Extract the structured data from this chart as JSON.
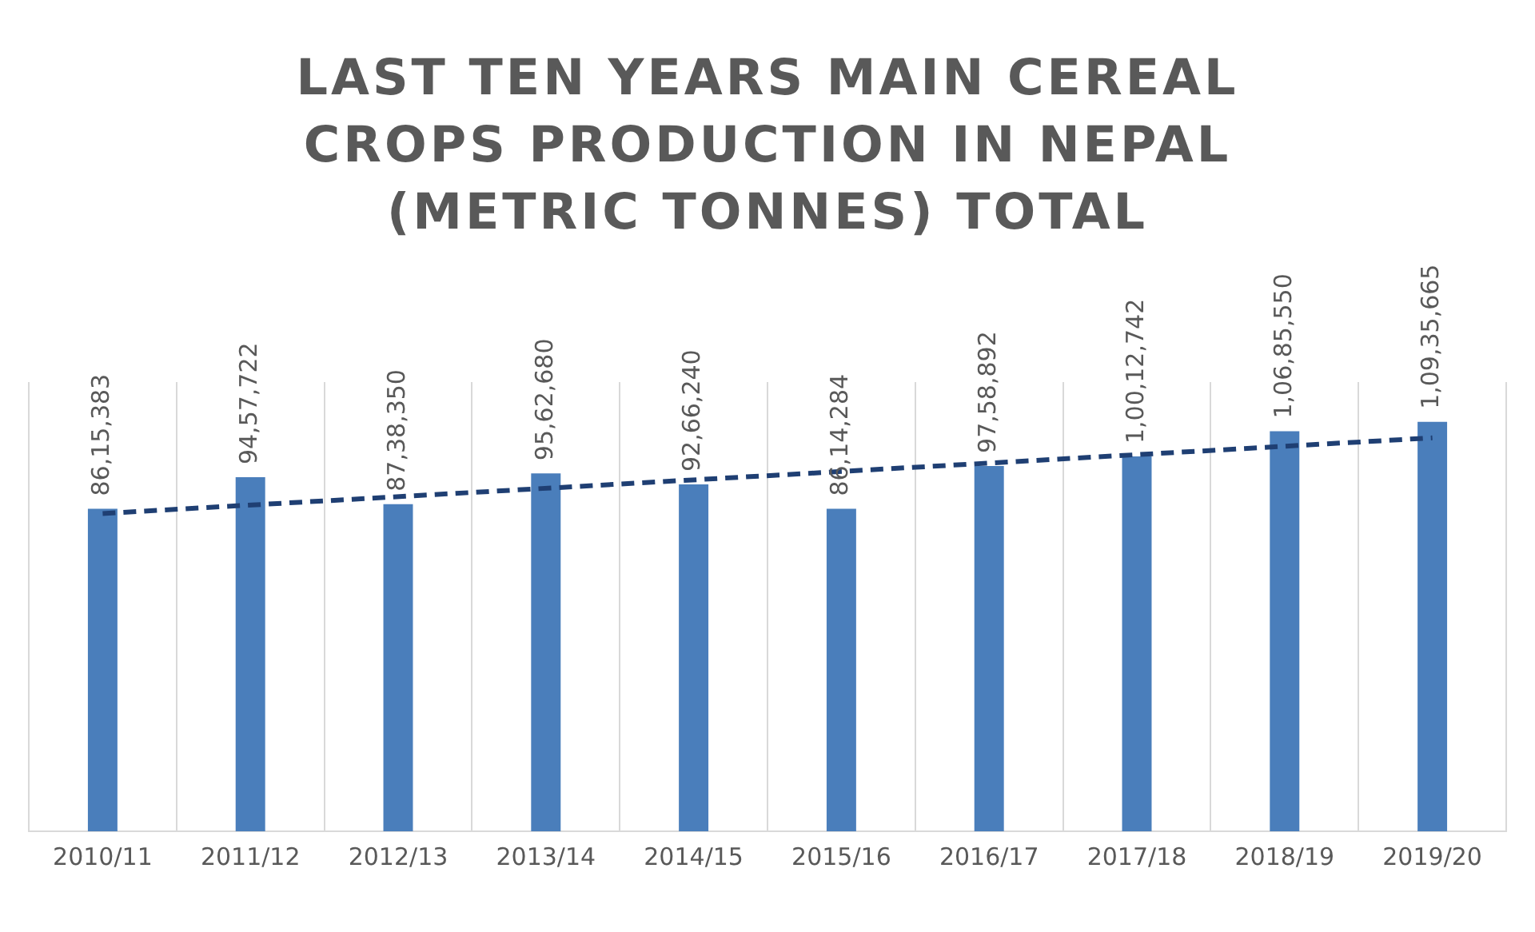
{
  "chart_data": {
    "type": "bar",
    "title": "LAST TEN YEARS MAIN CEREAL CROPS PRODUCTION IN NEPAL (METRIC TONNES) TOTAL",
    "categories": [
      "2010/11",
      "2011/12",
      "2012/13",
      "2013/14",
      "2014/15",
      "2015/16",
      "2016/17",
      "2017/18",
      "2018/19",
      "2019/20"
    ],
    "series": [
      {
        "color": "#4a7ebb",
        "values": [
          8615383,
          9457722,
          8738350,
          9562680,
          9266240,
          8614284,
          9758892,
          10012742,
          10685550,
          10935665
        ],
        "value_labels": [
          "86,15,383",
          "94,57,722",
          "87,38,350",
          "95,62,680",
          "92,66,240",
          "86,14,284",
          "97,58,892",
          "1,00,12,742",
          "1,06,85,550",
          "1,09,35,665"
        ]
      },
      {
        "type": "line",
        "color": "#1f3f73",
        "x": [
          "2010/11",
          "2019/20"
        ],
        "values": [
          8490000,
          10510000
        ],
        "line_style": "dashed",
        "marker": "none"
      }
    ],
    "grid": "x",
    "legend": false
  }
}
